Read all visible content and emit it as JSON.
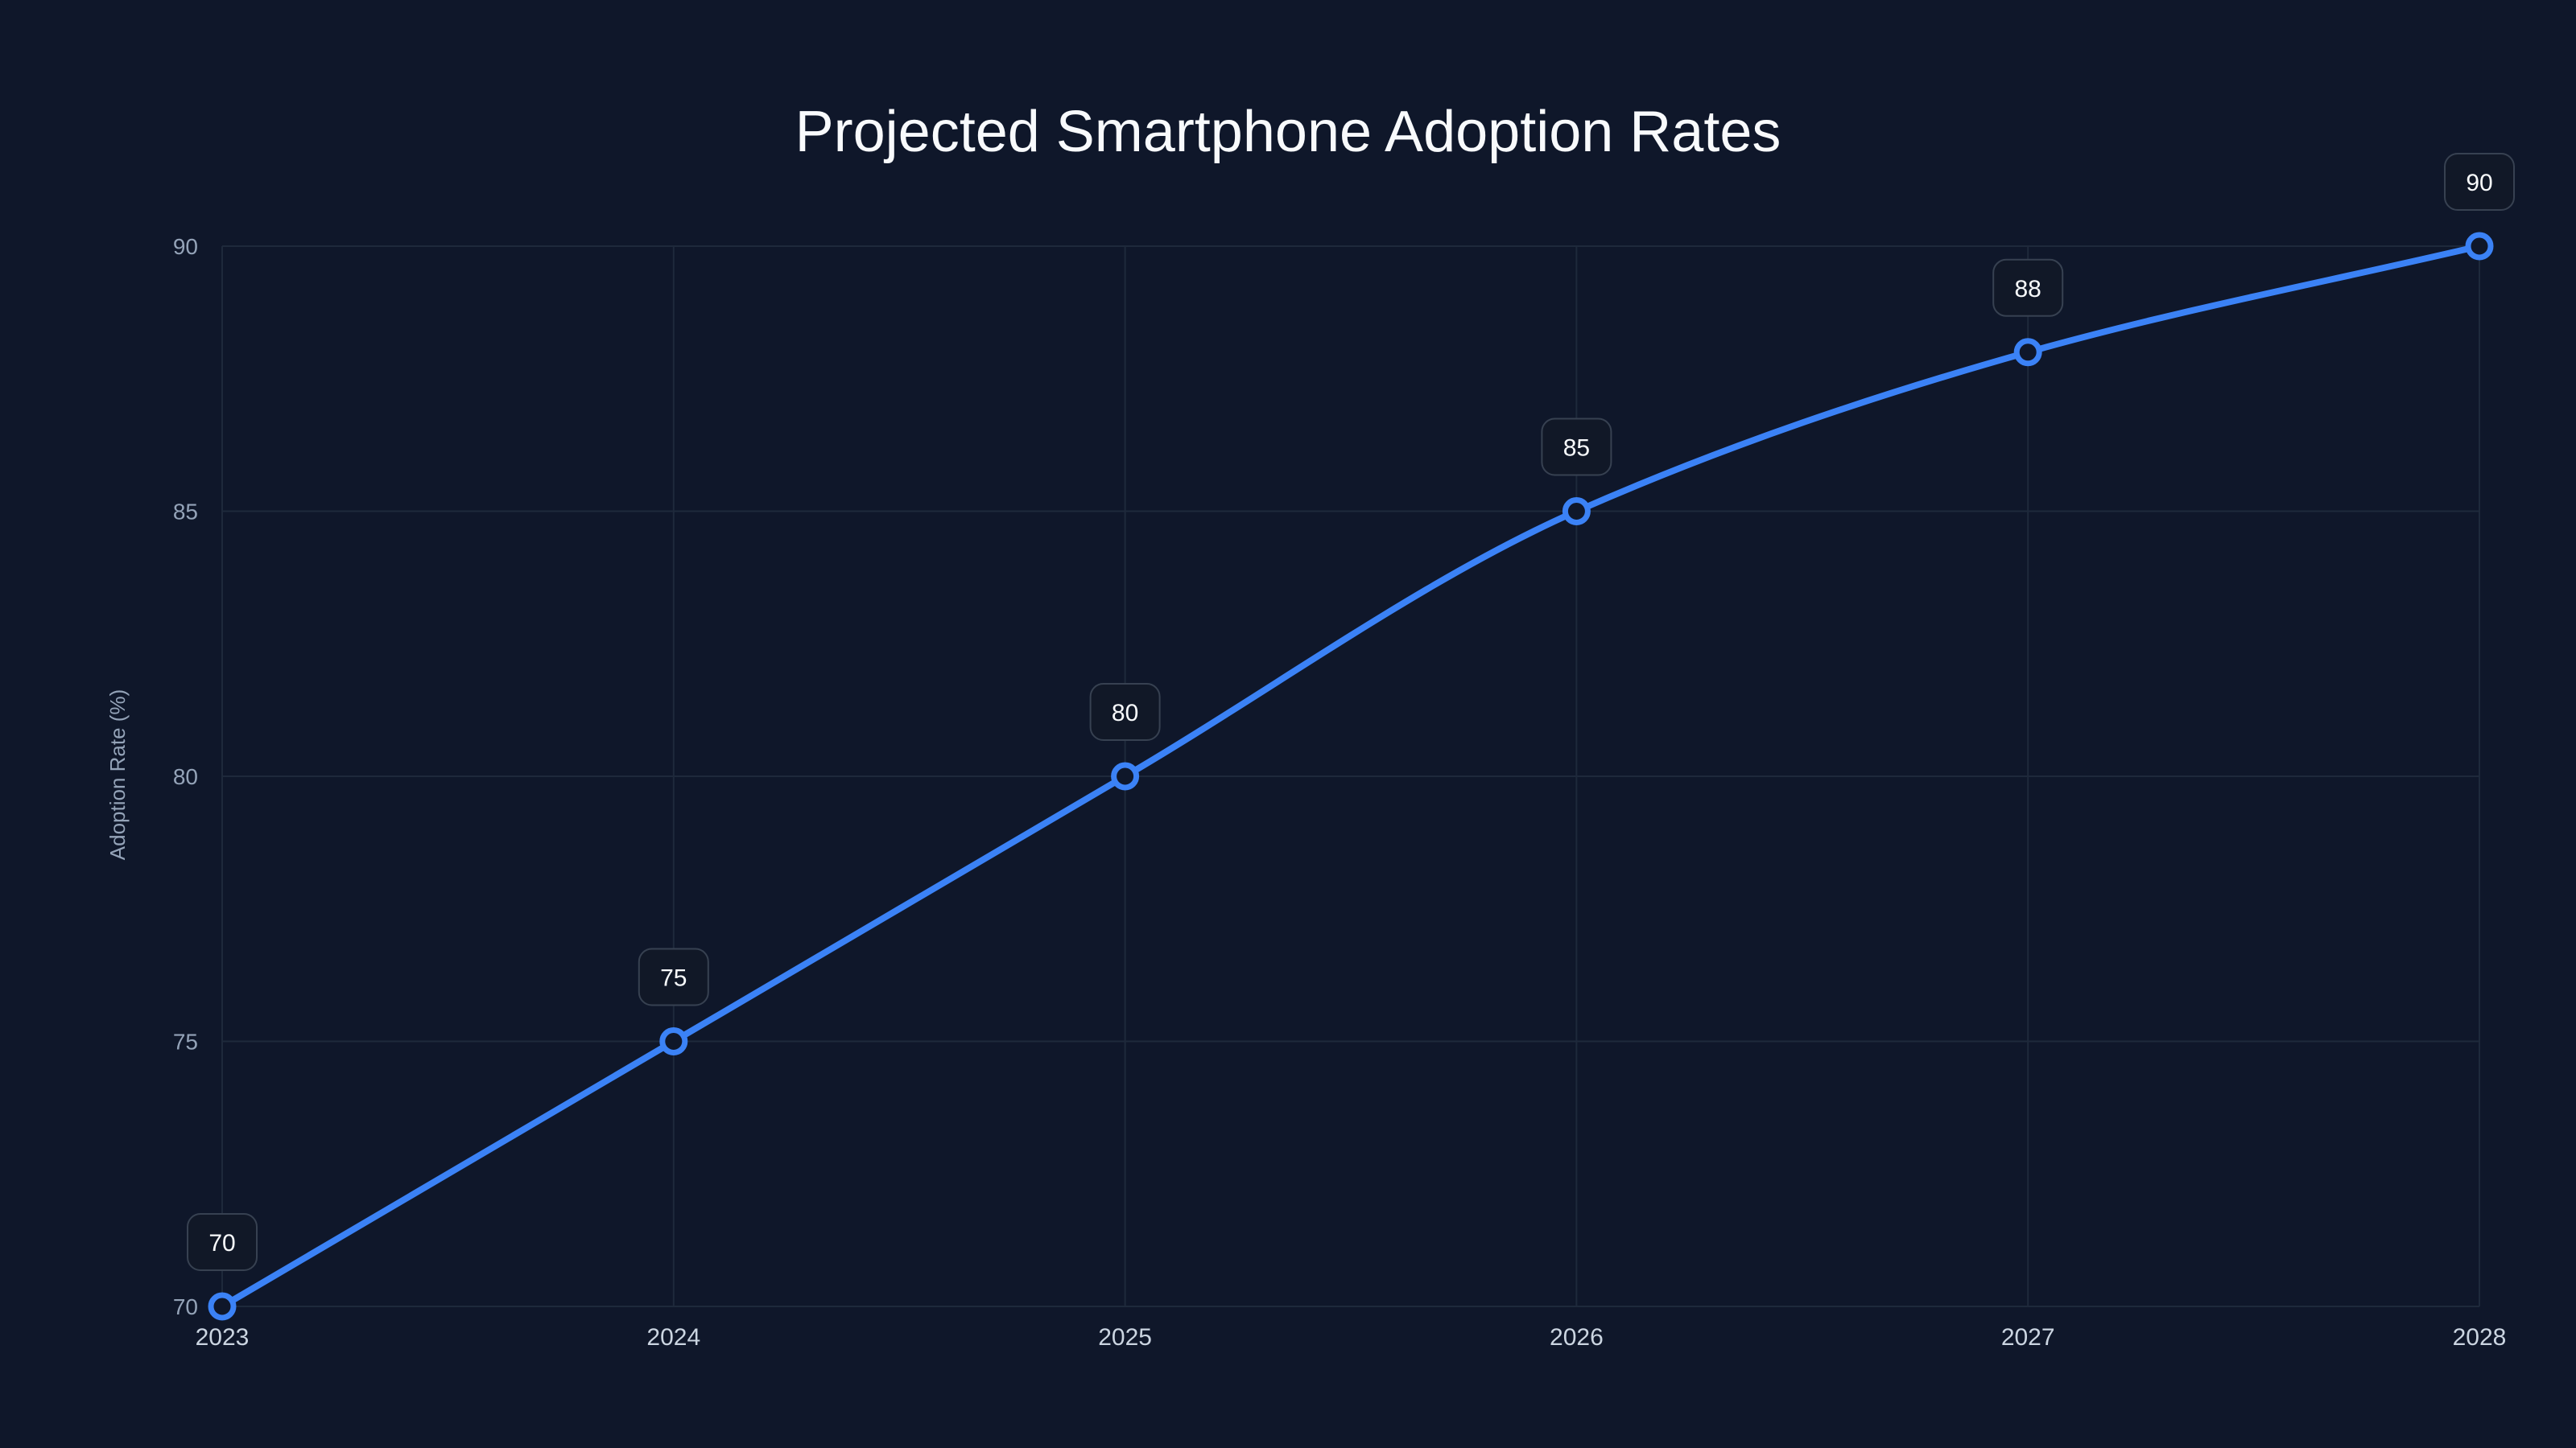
{
  "chart_data": {
    "type": "line",
    "title": "Projected Smartphone Adoption Rates",
    "xlabel": "",
    "ylabel": "Adoption Rate (%)",
    "categories": [
      "2023",
      "2024",
      "2025",
      "2026",
      "2027",
      "2028"
    ],
    "series": [
      {
        "name": "Adoption Rate",
        "values": [
          70,
          75,
          80,
          85,
          88,
          90
        ],
        "color": "#3b82f6"
      }
    ],
    "ylim": [
      70,
      90
    ],
    "yticks": [
      70,
      75,
      80,
      85,
      90
    ],
    "grid": true,
    "data_labels": true,
    "legend": "none",
    "background": "#0f172a"
  }
}
